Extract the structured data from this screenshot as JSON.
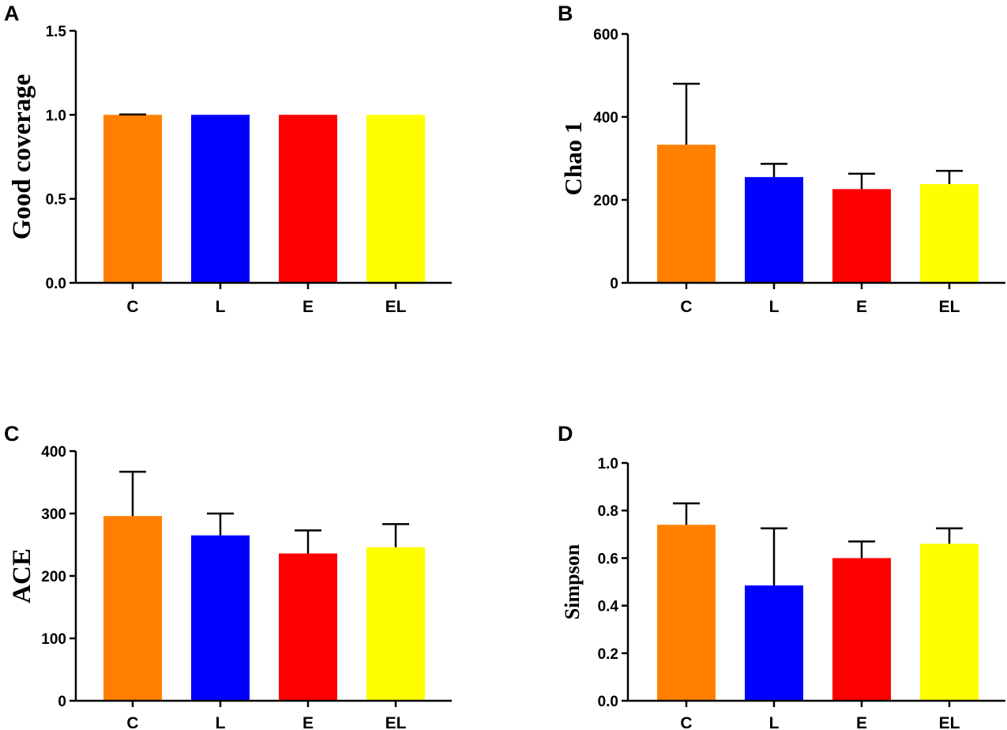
{
  "chart_data": [
    {
      "type": "bar",
      "panel": "A",
      "title": "",
      "xlabel": "",
      "ylabel": "Good coverage",
      "categories": [
        "C",
        "L",
        "E",
        "EL"
      ],
      "values": [
        1.0,
        1.0,
        1.0,
        1.0
      ],
      "errors": [
        0.002,
        0.0,
        0.0,
        0.0
      ],
      "colors": [
        "#ff8000",
        "#0000ff",
        "#ff0000",
        "#ffff00"
      ],
      "ylim": [
        0,
        1.5
      ],
      "yticks": [
        0,
        0.5,
        1.0,
        1.5
      ],
      "ytick_labels": [
        "0.0",
        "0.5",
        "1.0",
        "1.5"
      ],
      "grid": false
    },
    {
      "type": "bar",
      "panel": "B",
      "title": "",
      "xlabel": "",
      "ylabel": "Chao 1",
      "categories": [
        "C",
        "L",
        "E",
        "EL"
      ],
      "values": [
        333,
        255,
        226,
        238
      ],
      "errors": [
        147,
        32,
        37,
        32
      ],
      "colors": [
        "#ff8000",
        "#0000ff",
        "#ff0000",
        "#ffff00"
      ],
      "ylim": [
        0,
        600
      ],
      "yticks": [
        0,
        200,
        400,
        600
      ],
      "ytick_labels": [
        "0",
        "200",
        "400",
        "600"
      ],
      "grid": false
    },
    {
      "type": "bar",
      "panel": "C",
      "title": "",
      "xlabel": "",
      "ylabel": "ACE",
      "categories": [
        "C",
        "L",
        "E",
        "EL"
      ],
      "values": [
        296,
        265,
        236,
        246
      ],
      "errors": [
        71,
        35,
        37,
        37
      ],
      "colors": [
        "#ff8000",
        "#0000ff",
        "#ff0000",
        "#ffff00"
      ],
      "ylim": [
        0,
        400
      ],
      "yticks": [
        0,
        100,
        200,
        300,
        400
      ],
      "ytick_labels": [
        "0",
        "100",
        "200",
        "300",
        "400"
      ],
      "grid": false
    },
    {
      "type": "bar",
      "panel": "D",
      "title": "",
      "xlabel": "",
      "ylabel": "Simpson",
      "categories": [
        "C",
        "L",
        "E",
        "EL"
      ],
      "values": [
        0.74,
        0.485,
        0.6,
        0.66
      ],
      "errors": [
        0.09,
        0.24,
        0.07,
        0.065
      ],
      "colors": [
        "#ff8000",
        "#0000ff",
        "#ff0000",
        "#ffff00"
      ],
      "ylim": [
        0,
        1.0
      ],
      "yticks": [
        0,
        0.2,
        0.4,
        0.6,
        0.8,
        1.0
      ],
      "ytick_labels": [
        "0.0",
        "0.2",
        "0.4",
        "0.6",
        "0.8",
        "1.0"
      ],
      "grid": false
    }
  ]
}
